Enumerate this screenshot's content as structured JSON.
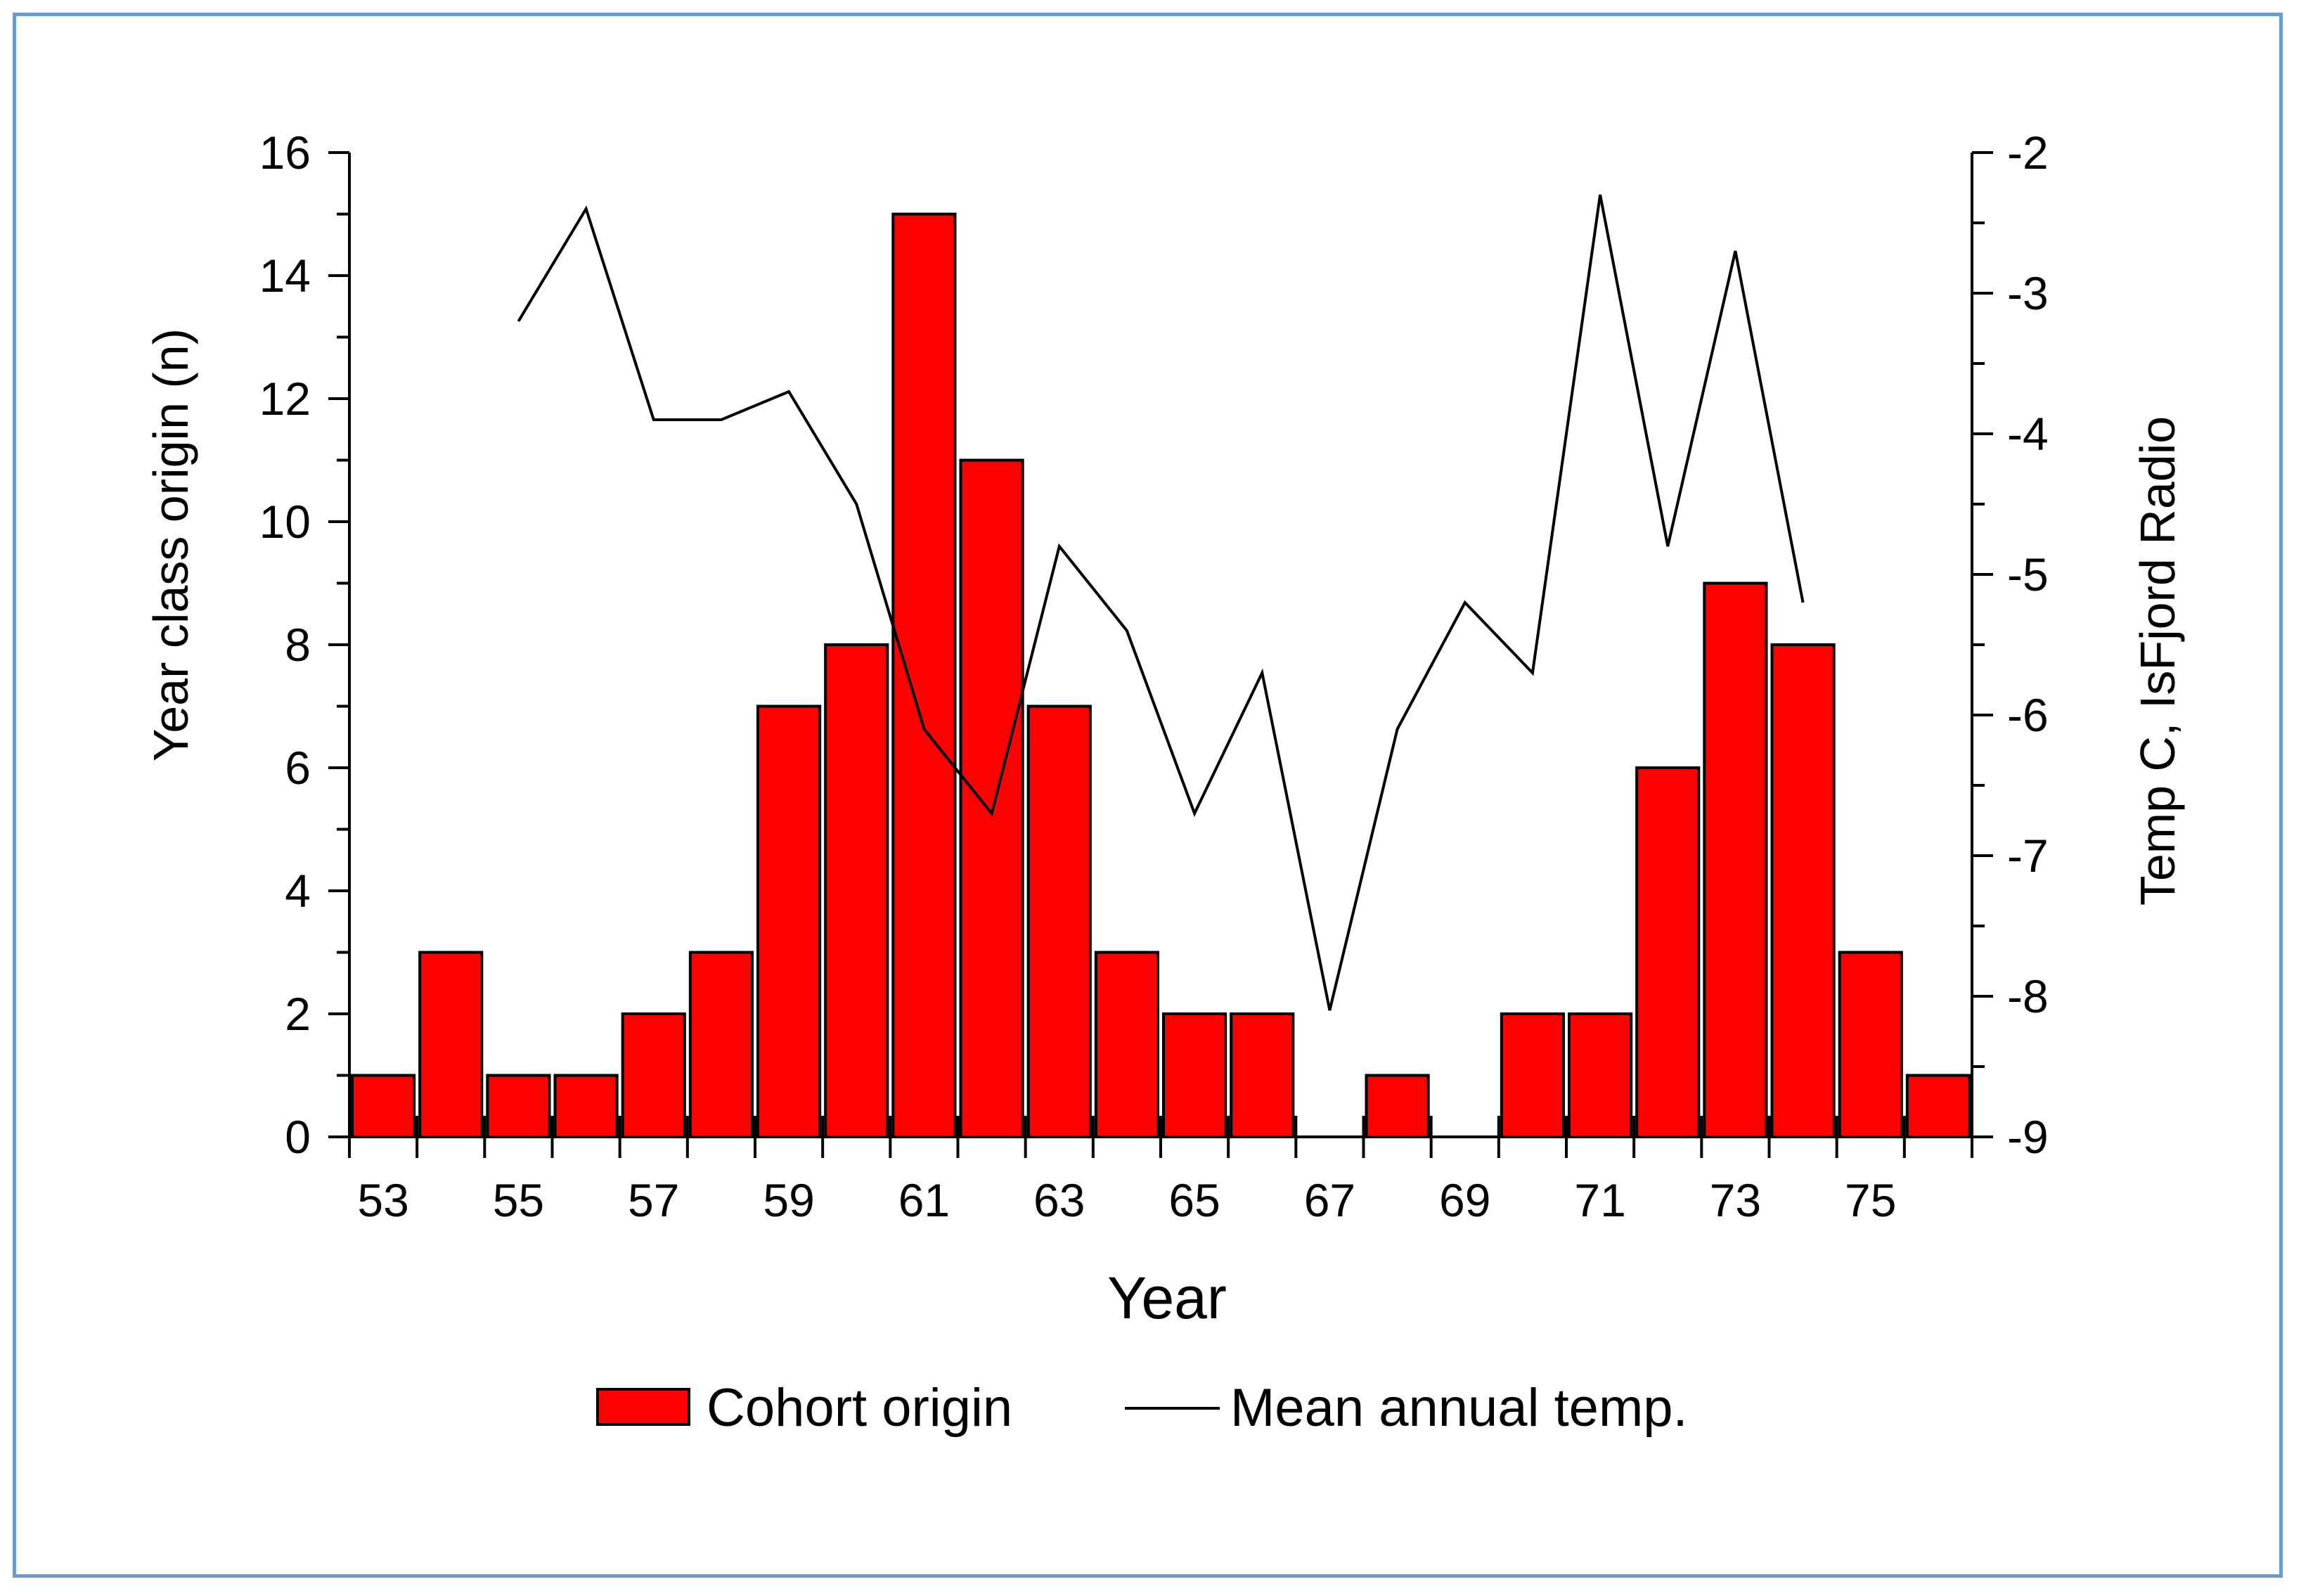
{
  "chart_data": {
    "type": "bar+line",
    "categories": [
      "53",
      "54",
      "55",
      "56",
      "57",
      "58",
      "59",
      "60",
      "61",
      "62",
      "63",
      "64",
      "65",
      "66",
      "67",
      "68",
      "69",
      "70",
      "71",
      "72",
      "73",
      "74",
      "75",
      "76"
    ],
    "series": [
      {
        "name": "Cohort origin",
        "type": "bar",
        "axis": "left",
        "color": "#ff0000",
        "values": [
          1,
          3,
          1,
          1,
          2,
          3,
          7,
          8,
          15,
          11,
          7,
          3,
          2,
          2,
          0,
          1,
          0,
          2,
          2,
          6,
          9,
          8,
          3,
          1
        ]
      },
      {
        "name": "Mean annual temp.",
        "type": "line",
        "axis": "right",
        "color": "#000000",
        "values": [
          null,
          null,
          -3.2,
          -2.4,
          -3.9,
          -3.9,
          -3.7,
          -4.5,
          -6.1,
          -6.7,
          -4.8,
          -5.4,
          -6.7,
          -5.7,
          -8.1,
          -6.1,
          -5.2,
          -5.7,
          -2.3,
          -4.8,
          -2.7,
          -5.2,
          null,
          null
        ]
      }
    ],
    "x_tick_labels": [
      "53",
      "55",
      "57",
      "59",
      "61",
      "63",
      "65",
      "67",
      "69",
      "71",
      "73",
      "75"
    ],
    "y_left_ticks": [
      "0",
      "2",
      "4",
      "6",
      "8",
      "10",
      "12",
      "14",
      "16"
    ],
    "y_right_ticks": [
      "-9",
      "-8",
      "-7",
      "-6",
      "-5",
      "-4",
      "-3",
      "-2"
    ],
    "xlabel": "Year",
    "ylabel_left": "Year class origin (n)",
    "ylabel_right": "Temp  C, IsFjord Radio",
    "ylim_left": [
      0,
      16
    ],
    "ylim_right": [
      -9,
      -2
    ],
    "grid": false,
    "legend": {
      "placement": "bottom-center",
      "entries": [
        "Cohort origin",
        "Mean annual temp."
      ]
    }
  }
}
